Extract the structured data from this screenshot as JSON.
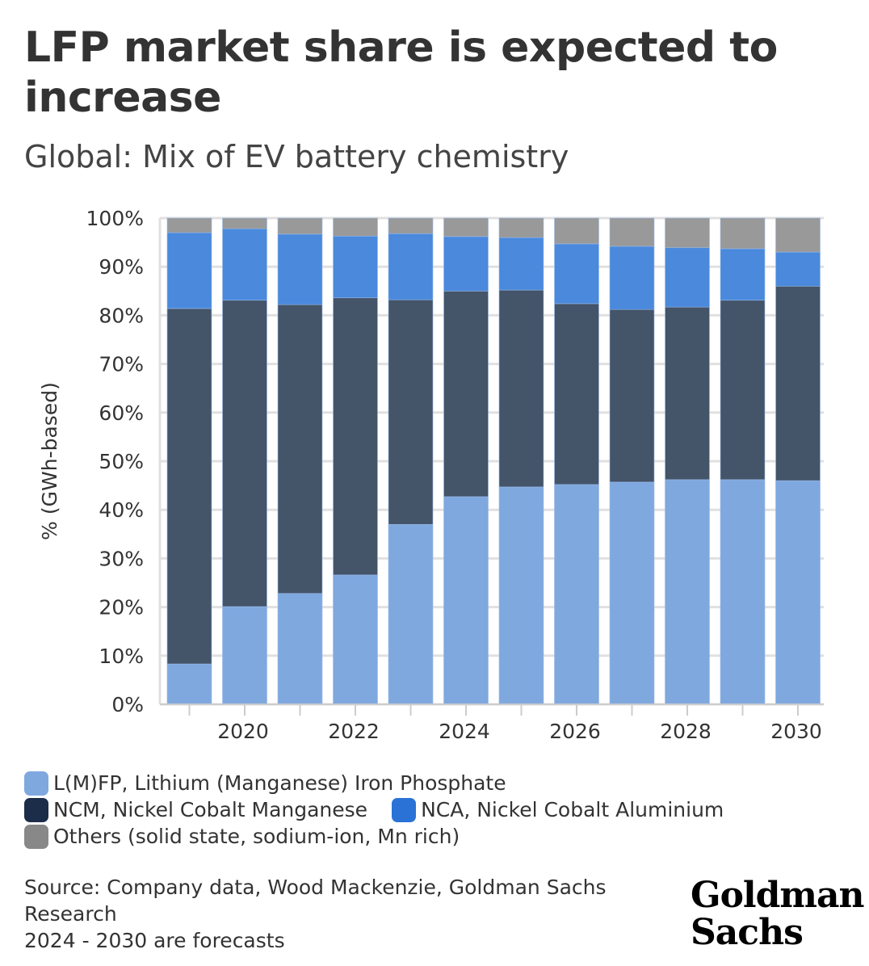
{
  "title": "LFP market share is expected to increase",
  "subtitle": "Global: Mix of EV battery chemistry",
  "colors": {
    "lfp": "#7fa8df",
    "ncm": "#445469",
    "nca": "#4a89dc",
    "others": "#999999",
    "legend_ncm": "#1b2d48",
    "legend_nca": "#2a72d6",
    "legend_others": "#888888"
  },
  "chart_data": {
    "type": "bar",
    "stacked": true,
    "title": "Global: Mix of EV battery chemistry",
    "ylabel": "% (GWh-based)",
    "xlabel": "",
    "ylim": [
      0,
      100
    ],
    "yticks": [
      "0%",
      "10%",
      "20%",
      "30%",
      "40%",
      "50%",
      "60%",
      "70%",
      "80%",
      "90%",
      "100%"
    ],
    "xticklabels": [
      "2020",
      "2022",
      "2024",
      "2026",
      "2028",
      "2030"
    ],
    "categories": [
      "2019",
      "2020",
      "2021",
      "2022",
      "2023",
      "2024",
      "2025",
      "2026",
      "2027",
      "2028",
      "2029",
      "2030"
    ],
    "series": [
      {
        "key": "lfp",
        "name": "L(M)FP, Lithium (Manganese) Iron Phosphate",
        "values": [
          8.3,
          20.1,
          22.8,
          26.6,
          37.0,
          42.7,
          44.7,
          45.2,
          45.7,
          46.2,
          46.2,
          46.0
        ]
      },
      {
        "key": "ncm",
        "name": "NCM, Nickel Cobalt Manganese",
        "values": [
          73.1,
          63.0,
          59.4,
          57.0,
          46.2,
          42.3,
          40.5,
          37.2,
          35.5,
          35.5,
          36.9,
          40.0
        ]
      },
      {
        "key": "nca",
        "name": "NCA, Nickel Cobalt Aluminium",
        "values": [
          15.6,
          14.7,
          14.5,
          12.7,
          13.6,
          11.2,
          10.8,
          12.3,
          13.0,
          12.2,
          10.6,
          7.0
        ]
      },
      {
        "key": "others",
        "name": "Others (solid state, sodium-ion, Mn rich)",
        "values": [
          3.0,
          2.2,
          3.3,
          3.7,
          3.2,
          3.8,
          4.0,
          5.3,
          5.8,
          6.1,
          6.3,
          7.0
        ]
      }
    ],
    "grid": true,
    "legend_position": "bottom"
  },
  "source": [
    "Source: Company data, Wood Mackenzie, Goldman Sachs",
    "Research",
    "2024 - 2030 are forecasts"
  ],
  "logo": [
    "Goldman",
    "Sachs"
  ]
}
